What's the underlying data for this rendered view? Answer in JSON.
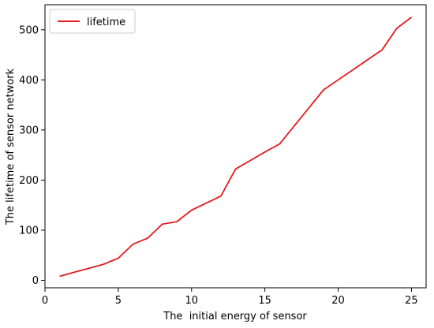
{
  "chart_data": {
    "type": "line",
    "xlabel": "The  initial energy of sensor",
    "ylabel": "The lifetime of sensor network",
    "xlim": [
      0,
      26
    ],
    "ylim": [
      -15,
      550
    ],
    "xticks": [
      0,
      5,
      10,
      15,
      20,
      25
    ],
    "yticks": [
      0,
      100,
      200,
      300,
      400,
      500
    ],
    "grid": false,
    "legend_position": "top-left",
    "series": [
      {
        "name": "lifetime",
        "color": "#e41a1c",
        "x": [
          1,
          2,
          3,
          4,
          5,
          6,
          7,
          8,
          9,
          10,
          11,
          12,
          13,
          14,
          15,
          16,
          17,
          18,
          19,
          20,
          21,
          22,
          23,
          24,
          25
        ],
        "y": [
          8,
          16,
          24,
          32,
          44,
          72,
          84,
          112,
          117,
          140,
          154,
          168,
          222,
          239,
          256,
          272,
          308,
          344,
          380,
          400,
          420,
          440,
          460,
          503,
          525
        ]
      }
    ]
  }
}
